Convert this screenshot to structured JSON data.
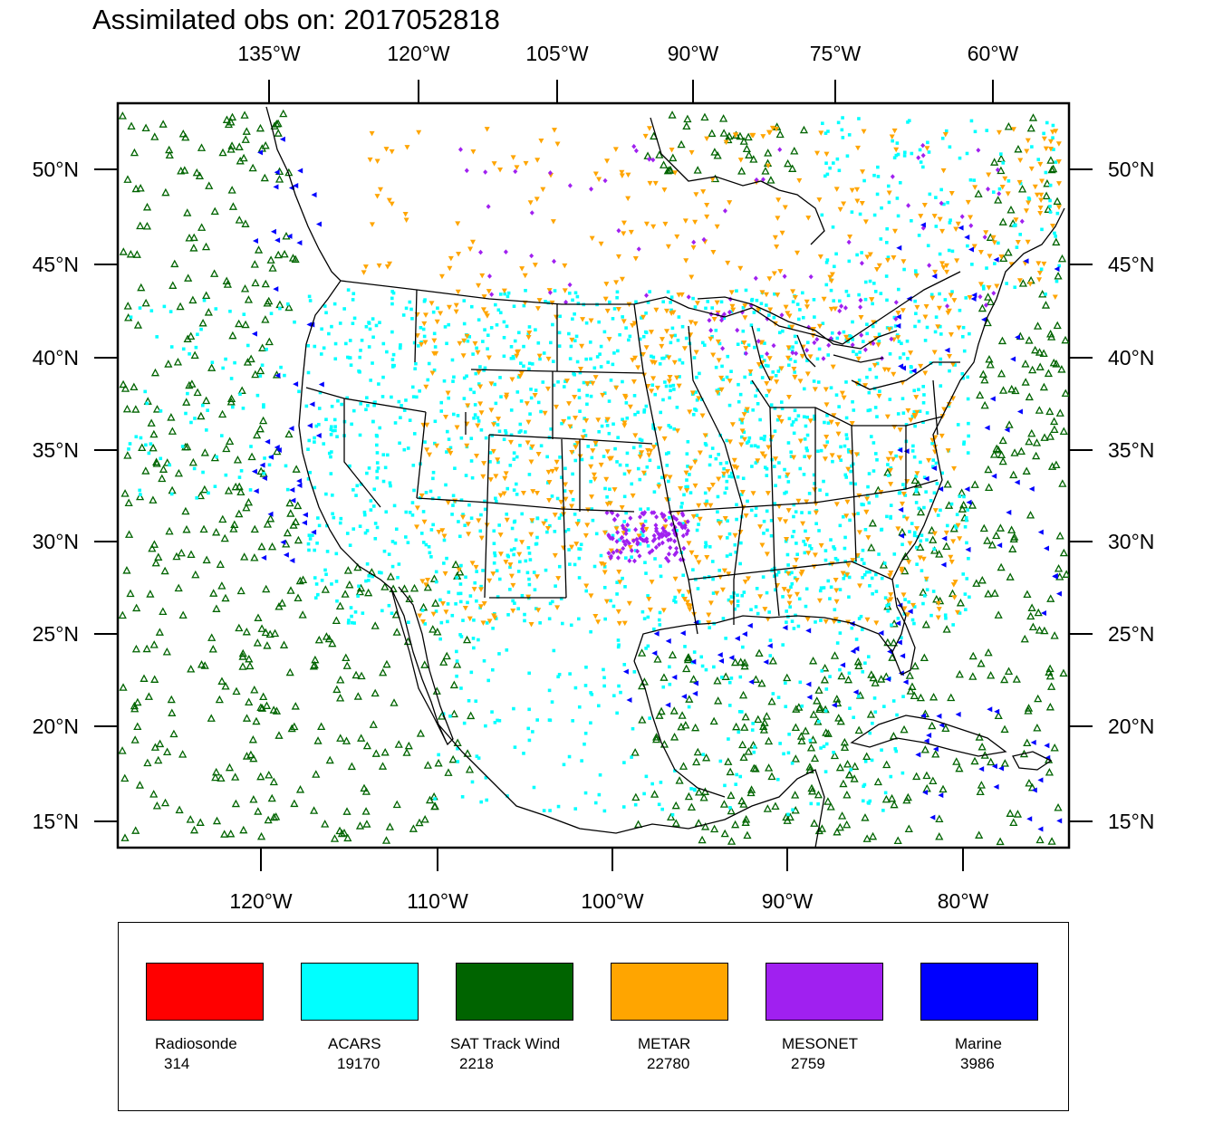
{
  "title": "Assimilated obs on: 2017052818",
  "top_axis_labels": [
    "135°W",
    "120°W",
    "105°W",
    "90°W",
    "75°W",
    "60°W"
  ],
  "bottom_axis_labels": [
    "120°W",
    "110°W",
    "100°W",
    "90°W",
    "80°W"
  ],
  "lat_labels": [
    "50°N",
    "45°N",
    "40°N",
    "35°N",
    "30°N",
    "25°N",
    "20°N",
    "15°N"
  ],
  "legend": [
    {
      "name": "Radiosonde",
      "count": "314",
      "color": "#ff0000"
    },
    {
      "name": "ACARS",
      "count": "19170",
      "color": "#00ffff"
    },
    {
      "name": "SAT Track Wind",
      "count": "2218",
      "color": "#006400"
    },
    {
      "name": "METAR",
      "count": "22780",
      "color": "#ffa500"
    },
    {
      "name": "MESONET",
      "count": "2759",
      "color": "#a020f0"
    },
    {
      "name": "Marine",
      "count": "3986",
      "color": "#0000ff"
    }
  ]
}
